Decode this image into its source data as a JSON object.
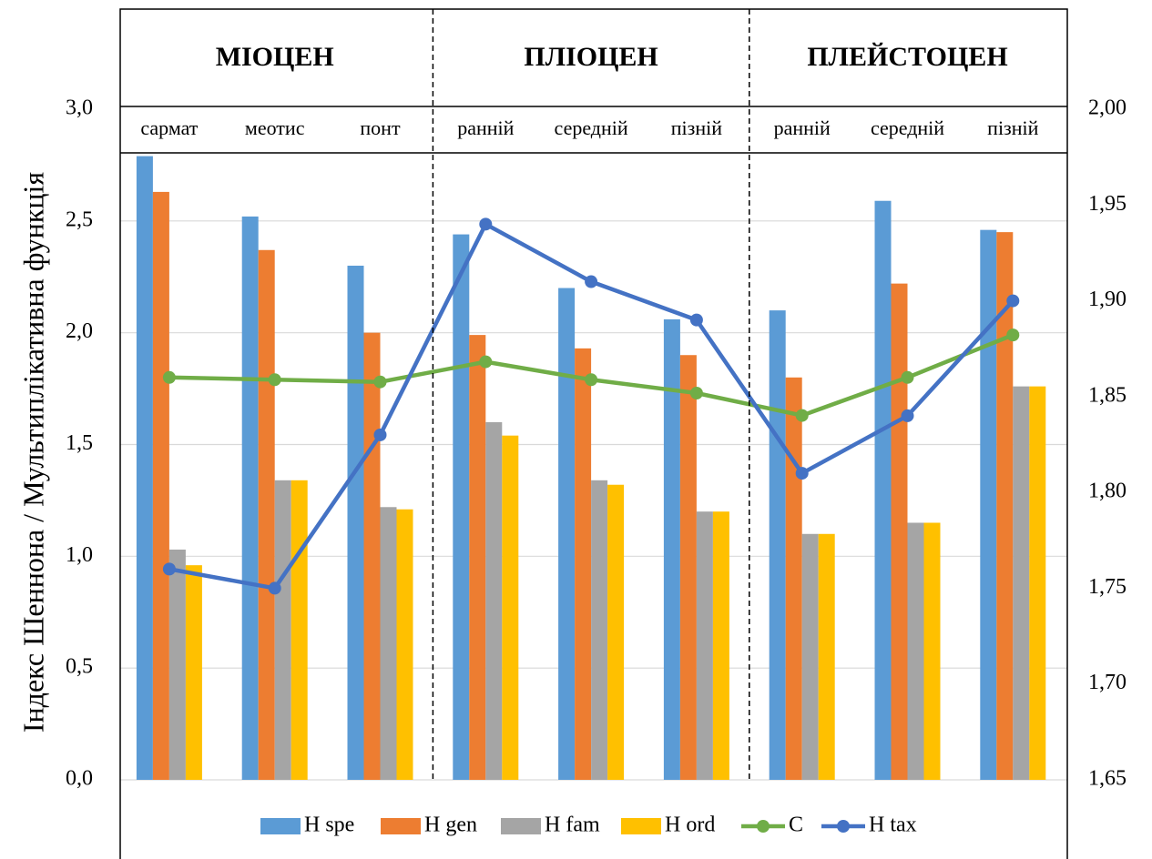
{
  "chart_data": {
    "type": "bar",
    "ylabel": "Індекс Шеннона / Мультиплікативна функція",
    "periods": [
      "МІОЦЕН",
      "ПЛІОЦЕН",
      "ПЛЕЙСТОЦЕН"
    ],
    "categories": [
      "сармат",
      "меотис",
      "понт",
      "ранній",
      "середній",
      "пізній",
      "ранній",
      "середній",
      "пізній"
    ],
    "series": [
      {
        "name": "H spe",
        "type": "bar",
        "color": "#5b9bd5",
        "values": [
          2.79,
          2.52,
          2.3,
          2.44,
          2.2,
          2.06,
          2.1,
          2.59,
          2.46
        ]
      },
      {
        "name": "H gen",
        "type": "bar",
        "color": "#ed7d31",
        "values": [
          2.63,
          2.37,
          2.0,
          1.99,
          1.93,
          1.9,
          1.8,
          2.22,
          2.45
        ]
      },
      {
        "name": "H fam",
        "type": "bar",
        "color": "#a5a5a5",
        "values": [
          1.03,
          1.34,
          1.22,
          1.6,
          1.34,
          1.2,
          1.1,
          1.15,
          1.76
        ]
      },
      {
        "name": "H ord",
        "type": "bar",
        "color": "#ffc000",
        "values": [
          0.96,
          1.34,
          1.21,
          1.54,
          1.32,
          1.2,
          1.1,
          1.15,
          1.76
        ]
      },
      {
        "name": "C",
        "type": "line",
        "color": "#70ad47",
        "values": [
          1.8,
          1.79,
          1.78,
          1.87,
          1.79,
          1.73,
          1.63,
          1.8,
          1.99
        ]
      },
      {
        "name": "H tax",
        "type": "line",
        "axis": "y2",
        "color": "#4472c4",
        "values": [
          1.76,
          1.75,
          1.83,
          1.94,
          1.91,
          1.89,
          1.81,
          1.84,
          1.9
        ]
      }
    ],
    "ylim": [
      0,
      3
    ],
    "yticks": [
      {
        "value": 0,
        "label": "0,0"
      },
      {
        "value": 0.5,
        "label": "0,5"
      },
      {
        "value": 1,
        "label": "1,0"
      },
      {
        "value": 1.5,
        "label": "1,5"
      },
      {
        "value": 2,
        "label": "2,0"
      },
      {
        "value": 2.5,
        "label": "2,5"
      },
      {
        "value": 3,
        "label": "3,0"
      }
    ],
    "y2lim": [
      1.65,
      2.0
    ],
    "y2ticks": [
      {
        "value": 1.65,
        "label": "1,65"
      },
      {
        "value": 1.7,
        "label": "1,70"
      },
      {
        "value": 1.75,
        "label": "1,75"
      },
      {
        "value": 1.8,
        "label": "1,80"
      },
      {
        "value": 1.85,
        "label": "1,85"
      },
      {
        "value": 1.9,
        "label": "1,90"
      },
      {
        "value": 1.95,
        "label": "1,95"
      },
      {
        "value": 2.0,
        "label": "2,00"
      }
    ],
    "grid": true
  }
}
